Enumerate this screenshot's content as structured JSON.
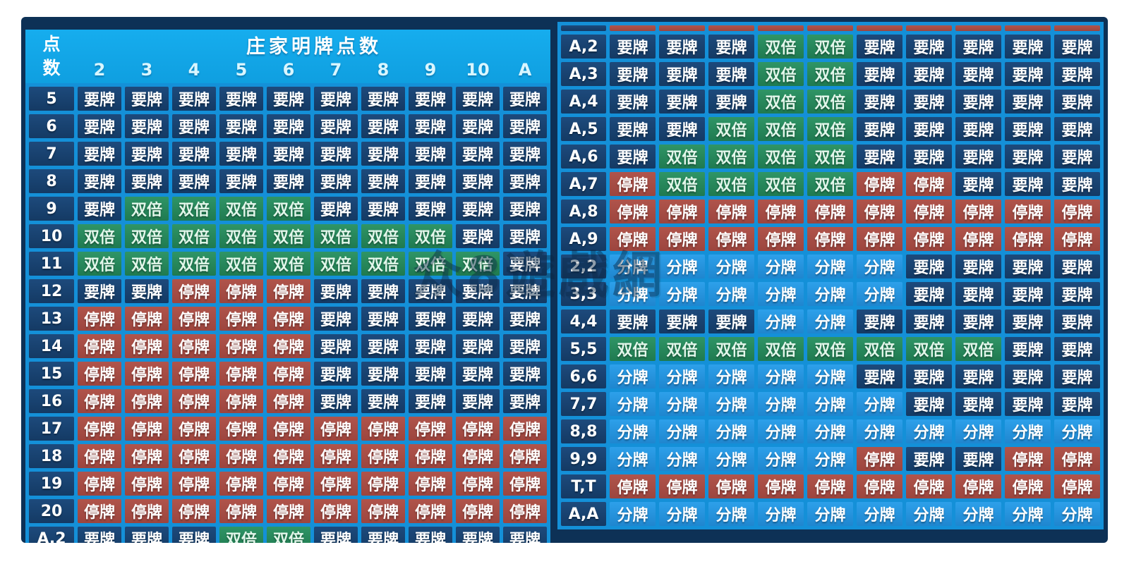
{
  "watermark": "众8遊戲網",
  "colors": {
    "board_background": "#0d3156",
    "grid_line": "#1490d8",
    "header_blue": "#12a7e9",
    "hit_cell": "#17406d",
    "stand_cell": "#a74b43",
    "double_cell": "#27875a",
    "split_cell": "#2392dc",
    "text": "#ffffff"
  },
  "chart_data": {
    "type": "table",
    "legend": {
      "labels": {
        "H": "要牌",
        "S": "停牌",
        "D": "双倍",
        "P": "分牌"
      },
      "class_names": {
        "H": "hit",
        "S": "stand",
        "D": "double",
        "P": "split"
      }
    },
    "left_table": {
      "corner_header": "点数",
      "dealer_header": "庄家明牌点数",
      "columns": [
        "2",
        "3",
        "4",
        "5",
        "6",
        "7",
        "8",
        "9",
        "10",
        "A"
      ],
      "rows": [
        {
          "label": "5",
          "actions": [
            "H",
            "H",
            "H",
            "H",
            "H",
            "H",
            "H",
            "H",
            "H",
            "H"
          ]
        },
        {
          "label": "6",
          "actions": [
            "H",
            "H",
            "H",
            "H",
            "H",
            "H",
            "H",
            "H",
            "H",
            "H"
          ]
        },
        {
          "label": "7",
          "actions": [
            "H",
            "H",
            "H",
            "H",
            "H",
            "H",
            "H",
            "H",
            "H",
            "H"
          ]
        },
        {
          "label": "8",
          "actions": [
            "H",
            "H",
            "H",
            "H",
            "H",
            "H",
            "H",
            "H",
            "H",
            "H"
          ]
        },
        {
          "label": "9",
          "actions": [
            "H",
            "D",
            "D",
            "D",
            "D",
            "H",
            "H",
            "H",
            "H",
            "H"
          ]
        },
        {
          "label": "10",
          "actions": [
            "D",
            "D",
            "D",
            "D",
            "D",
            "D",
            "D",
            "D",
            "H",
            "H"
          ]
        },
        {
          "label": "11",
          "actions": [
            "D",
            "D",
            "D",
            "D",
            "D",
            "D",
            "D",
            "D",
            "D",
            "H"
          ]
        },
        {
          "label": "12",
          "actions": [
            "H",
            "H",
            "S",
            "S",
            "S",
            "H",
            "H",
            "H",
            "H",
            "H"
          ]
        },
        {
          "label": "13",
          "actions": [
            "S",
            "S",
            "S",
            "S",
            "S",
            "H",
            "H",
            "H",
            "H",
            "H"
          ]
        },
        {
          "label": "14",
          "actions": [
            "S",
            "S",
            "S",
            "S",
            "S",
            "H",
            "H",
            "H",
            "H",
            "H"
          ]
        },
        {
          "label": "15",
          "actions": [
            "S",
            "S",
            "S",
            "S",
            "S",
            "H",
            "H",
            "H",
            "H",
            "H"
          ]
        },
        {
          "label": "16",
          "actions": [
            "S",
            "S",
            "S",
            "S",
            "S",
            "H",
            "H",
            "H",
            "H",
            "H"
          ]
        },
        {
          "label": "17",
          "actions": [
            "S",
            "S",
            "S",
            "S",
            "S",
            "S",
            "S",
            "S",
            "S",
            "S"
          ]
        },
        {
          "label": "18",
          "actions": [
            "S",
            "S",
            "S",
            "S",
            "S",
            "S",
            "S",
            "S",
            "S",
            "S"
          ]
        },
        {
          "label": "19",
          "actions": [
            "S",
            "S",
            "S",
            "S",
            "S",
            "S",
            "S",
            "S",
            "S",
            "S"
          ]
        },
        {
          "label": "20",
          "actions": [
            "S",
            "S",
            "S",
            "S",
            "S",
            "S",
            "S",
            "S",
            "S",
            "S"
          ]
        },
        {
          "label": "A,2",
          "partial": true,
          "actions": [
            "H",
            "H",
            "H",
            "D",
            "D",
            "H",
            "H",
            "H",
            "H",
            "H"
          ]
        }
      ]
    },
    "right_table": {
      "rows": [
        {
          "label": "",
          "sliver": true,
          "actions": [
            "S",
            "S",
            "S",
            "S",
            "S",
            "S",
            "S",
            "S",
            "S",
            "S"
          ]
        },
        {
          "label": "A,2",
          "actions": [
            "H",
            "H",
            "H",
            "D",
            "D",
            "H",
            "H",
            "H",
            "H",
            "H"
          ]
        },
        {
          "label": "A,3",
          "actions": [
            "H",
            "H",
            "H",
            "D",
            "D",
            "H",
            "H",
            "H",
            "H",
            "H"
          ]
        },
        {
          "label": "A,4",
          "actions": [
            "H",
            "H",
            "H",
            "D",
            "D",
            "H",
            "H",
            "H",
            "H",
            "H"
          ]
        },
        {
          "label": "A,5",
          "actions": [
            "H",
            "H",
            "D",
            "D",
            "D",
            "H",
            "H",
            "H",
            "H",
            "H"
          ]
        },
        {
          "label": "A,6",
          "actions": [
            "H",
            "D",
            "D",
            "D",
            "D",
            "H",
            "H",
            "H",
            "H",
            "H"
          ]
        },
        {
          "label": "A,7",
          "actions": [
            "S",
            "D",
            "D",
            "D",
            "D",
            "S",
            "S",
            "H",
            "H",
            "H"
          ]
        },
        {
          "label": "A,8",
          "actions": [
            "S",
            "S",
            "S",
            "S",
            "S",
            "S",
            "S",
            "S",
            "S",
            "S"
          ]
        },
        {
          "label": "A,9",
          "actions": [
            "S",
            "S",
            "S",
            "S",
            "S",
            "S",
            "S",
            "S",
            "S",
            "S"
          ]
        },
        {
          "label": "2,2",
          "actions": [
            "P",
            "P",
            "P",
            "P",
            "P",
            "P",
            "H",
            "H",
            "H",
            "H"
          ]
        },
        {
          "label": "3,3",
          "actions": [
            "P",
            "P",
            "P",
            "P",
            "P",
            "P",
            "H",
            "H",
            "H",
            "H"
          ]
        },
        {
          "label": "4,4",
          "actions": [
            "H",
            "H",
            "H",
            "P",
            "P",
            "H",
            "H",
            "H",
            "H",
            "H"
          ]
        },
        {
          "label": "5,5",
          "actions": [
            "D",
            "D",
            "D",
            "D",
            "D",
            "D",
            "D",
            "D",
            "H",
            "H"
          ]
        },
        {
          "label": "6,6",
          "actions": [
            "P",
            "P",
            "P",
            "P",
            "P",
            "H",
            "H",
            "H",
            "H",
            "H"
          ]
        },
        {
          "label": "7,7",
          "actions": [
            "P",
            "P",
            "P",
            "P",
            "P",
            "P",
            "H",
            "H",
            "H",
            "H"
          ]
        },
        {
          "label": "8,8",
          "actions": [
            "P",
            "P",
            "P",
            "P",
            "P",
            "P",
            "P",
            "P",
            "P",
            "P"
          ]
        },
        {
          "label": "9,9",
          "actions": [
            "P",
            "P",
            "P",
            "P",
            "P",
            "S",
            "H",
            "H",
            "S",
            "S"
          ]
        },
        {
          "label": "T,T",
          "actions": [
            "S",
            "S",
            "S",
            "S",
            "S",
            "S",
            "S",
            "S",
            "S",
            "S"
          ]
        },
        {
          "label": "A,A",
          "actions": [
            "P",
            "P",
            "P",
            "P",
            "P",
            "P",
            "P",
            "P",
            "P",
            "P"
          ]
        }
      ]
    }
  }
}
